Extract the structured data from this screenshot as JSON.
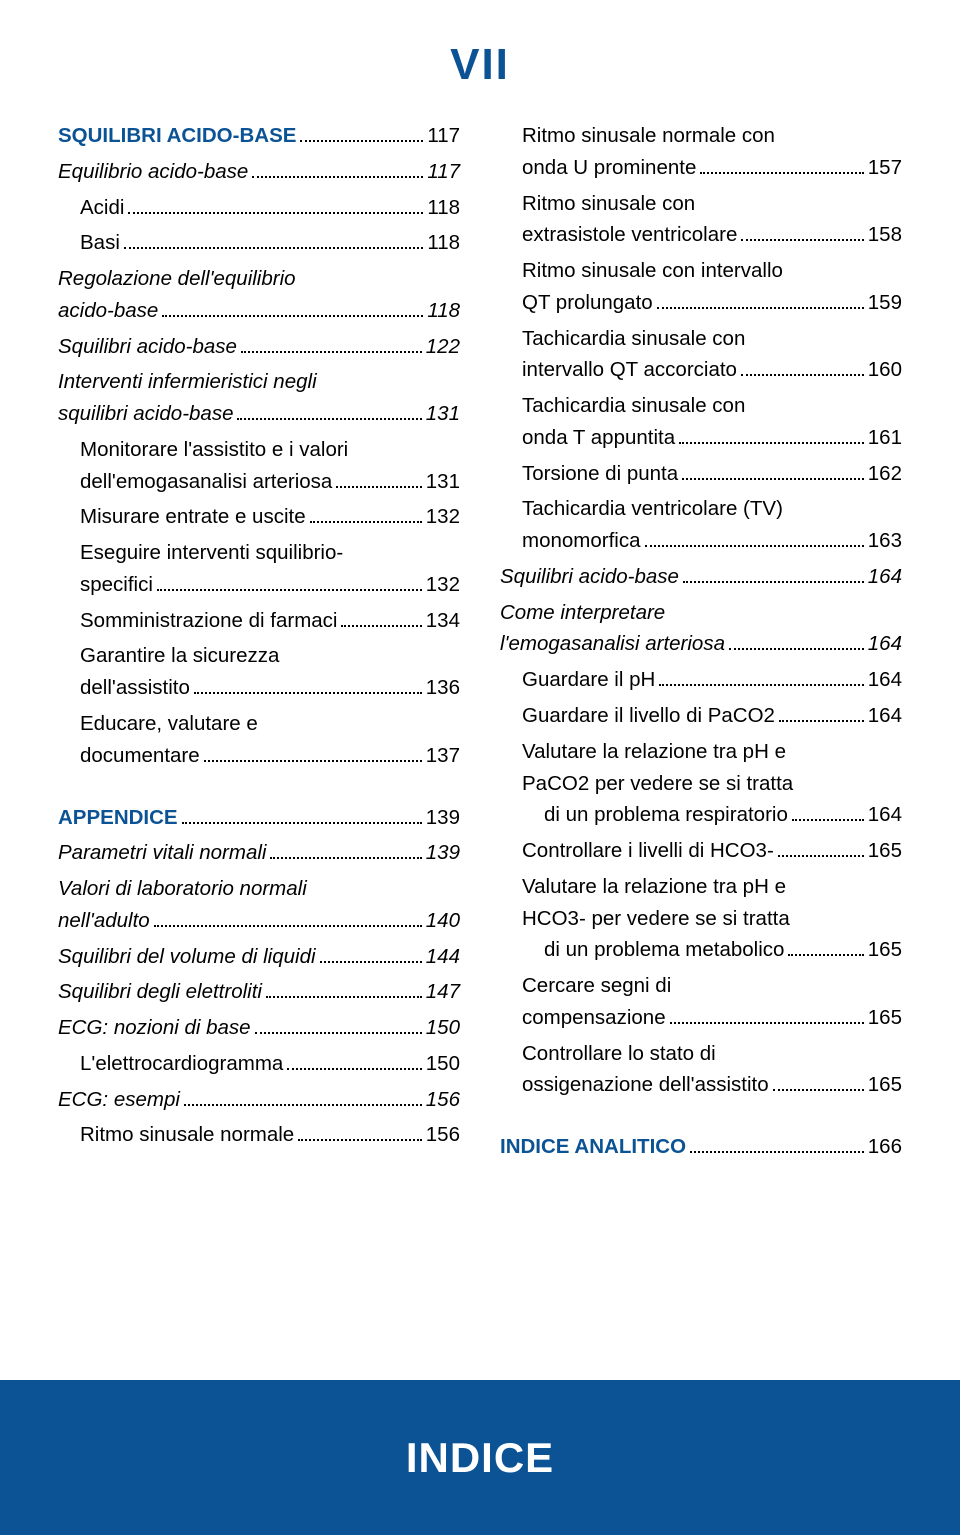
{
  "colors": {
    "accent": "#0b5394",
    "text": "#000000",
    "bg": "#ffffff",
    "footer_bg": "#0b5394",
    "footer_text": "#ffffff"
  },
  "typography": {
    "body_fontsize": 20.5,
    "header_fontsize": 44,
    "footer_fontsize": 42,
    "line_height": 1.55
  },
  "roman": "VII",
  "footer": "INDICE",
  "left": [
    {
      "t": "head",
      "label": "SQUILIBRI ACIDO-BASE",
      "page": "117",
      "i": 0
    },
    {
      "t": "it",
      "label": "Equilibrio acido-base",
      "page": "117",
      "i": 0
    },
    {
      "t": "n",
      "label": "Acidi",
      "page": "118",
      "i": 1
    },
    {
      "t": "n",
      "label": "Basi",
      "page": "118",
      "i": 1
    },
    {
      "t": "ml",
      "pre": "Regolazione dell'equilibrio",
      "label": "acido-base",
      "page": "118",
      "i": 0,
      "style": "italic"
    },
    {
      "t": "it",
      "label": "Squilibri acido-base",
      "page": "122",
      "i": 0
    },
    {
      "t": "ml",
      "pre": "Interventi infermieristici negli",
      "label": "squilibri acido-base",
      "page": "131",
      "i": 0,
      "style": "italic"
    },
    {
      "t": "ml",
      "pre": "Monitorare l'assistito e i valori",
      "label": "dell'emogasanalisi arteriosa",
      "page": "131",
      "i": 1
    },
    {
      "t": "n",
      "label": "Misurare entrate e uscite",
      "page": "132",
      "i": 1
    },
    {
      "t": "ml",
      "pre": "Eseguire interventi squilibrio-",
      "label": "specifici",
      "page": "132",
      "i": 1
    },
    {
      "t": "n",
      "label": "Somministrazione di farmaci",
      "page": "134",
      "i": 1
    },
    {
      "t": "ml",
      "pre": "Garantire la sicurezza",
      "label": "dell'assistito",
      "page": "136",
      "i": 1
    },
    {
      "t": "ml",
      "pre": "Educare, valutare e",
      "label": "documentare",
      "page": "137",
      "i": 1
    },
    {
      "t": "spacer"
    },
    {
      "t": "head",
      "label": "APPENDICE",
      "page": "139",
      "i": 0
    },
    {
      "t": "it",
      "label": "Parametri vitali normali",
      "page": "139",
      "i": 0
    },
    {
      "t": "ml",
      "pre": "Valori di laboratorio normali",
      "label": "nell'adulto",
      "page": "140",
      "i": 0,
      "style": "italic"
    },
    {
      "t": "it",
      "label": "Squilibri del volume di liquidi",
      "page": "144",
      "i": 0
    },
    {
      "t": "it",
      "label": "Squilibri degli elettroliti",
      "page": "147",
      "i": 0
    },
    {
      "t": "it",
      "label": "ECG: nozioni di base",
      "page": "150",
      "i": 0
    },
    {
      "t": "n",
      "label": "L'elettrocardiogramma",
      "page": "150",
      "i": 1
    },
    {
      "t": "it",
      "label": "ECG: esempi",
      "page": "156",
      "i": 0
    },
    {
      "t": "n",
      "label": "Ritmo sinusale normale",
      "page": "156",
      "i": 1
    }
  ],
  "right": [
    {
      "t": "ml",
      "pre": "Ritmo sinusale normale con",
      "label": "onda U prominente",
      "page": "157",
      "i": 1
    },
    {
      "t": "ml",
      "pre": "Ritmo sinusale con",
      "label": "extrasistole ventricolare",
      "page": "158",
      "i": 1
    },
    {
      "t": "ml",
      "pre": "Ritmo sinusale con intervallo",
      "label": "QT prolungato",
      "page": "159",
      "i": 1
    },
    {
      "t": "ml",
      "pre": "Tachicardia sinusale con",
      "label": "intervallo QT accorciato",
      "page": "160",
      "i": 1
    },
    {
      "t": "ml",
      "pre": "Tachicardia sinusale con",
      "label": "onda T appuntita",
      "page": "161",
      "i": 1
    },
    {
      "t": "n",
      "label": "Torsione di punta",
      "page": "162",
      "i": 1
    },
    {
      "t": "ml",
      "pre": "Tachicardia ventricolare (TV)",
      "label": "monomorfica",
      "page": "163",
      "i": 1
    },
    {
      "t": "it",
      "label": "Squilibri acido-base",
      "page": "164",
      "i": 0
    },
    {
      "t": "ml",
      "pre": "Come interpretare",
      "label": "l'emogasanalisi arteriosa",
      "page": "164",
      "i": 0,
      "style": "italic"
    },
    {
      "t": "n",
      "label": "Guardare il pH",
      "page": "164",
      "i": 1
    },
    {
      "t": "n",
      "label": "Guardare il livello di PaCO2",
      "page": "164",
      "i": 1
    },
    {
      "t": "ml3",
      "pre1": "Valutare la relazione tra pH e",
      "pre2": "PaCO2 per vedere se si tratta",
      "label": "di un problema respiratorio",
      "page": "164",
      "i": 1
    },
    {
      "t": "n",
      "label": "Controllare i livelli di HCO3-",
      "page": "165",
      "i": 1
    },
    {
      "t": "ml3",
      "pre1": "Valutare la relazione tra pH e",
      "pre2": "HCO3- per vedere se si tratta",
      "label": "di un problema metabolico",
      "page": "165",
      "i": 1
    },
    {
      "t": "ml",
      "pre": "Cercare segni di",
      "label": "compensazione",
      "page": "165",
      "i": 1
    },
    {
      "t": "ml",
      "pre": "Controllare lo stato di",
      "label": "ossigenazione dell'assistito",
      "page": "165",
      "i": 1
    },
    {
      "t": "spacer"
    },
    {
      "t": "head",
      "label": "INDICE ANALITICO",
      "page": "166",
      "i": 0
    }
  ]
}
